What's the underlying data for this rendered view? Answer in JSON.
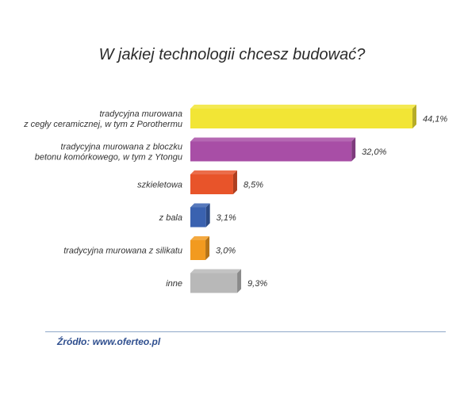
{
  "chart_data": {
    "type": "bar",
    "orientation": "horizontal",
    "title": "W jakiej technologii chcesz budować?",
    "categories": [
      [
        "tradycyjna murowana",
        "z cegły ceramicznej, w tym z Porothermu"
      ],
      [
        "tradycyjna murowana z bloczku",
        "betonu komórkowego, w tym z Ytongu"
      ],
      [
        "szkieletowa"
      ],
      [
        "z bala"
      ],
      [
        "tradycyjna murowana z silikatu"
      ],
      [
        "inne"
      ]
    ],
    "values": [
      44.1,
      32.0,
      8.5,
      3.1,
      3.0,
      9.3
    ],
    "value_labels": [
      "44,1%",
      "32,0%",
      "8,5%",
      "3,1%",
      "3,0%",
      "9,3%"
    ],
    "colors": [
      "#f2e535",
      "#a84ea6",
      "#e8542a",
      "#3a62b0",
      "#f29a1f",
      "#b8b8b8"
    ],
    "xlim": [
      0,
      44.1
    ],
    "grid": false,
    "legend": "none"
  },
  "footer": {
    "source": "Źródło: www.oferteo.pl"
  }
}
